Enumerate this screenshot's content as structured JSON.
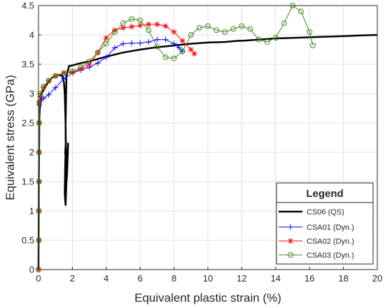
{
  "chart_data": {
    "type": "line",
    "xlabel": "Equivalent plastic strain (%)",
    "ylabel": "Equivalent stress (GPa)",
    "xlim": [
      0,
      20
    ],
    "ylim": [
      0,
      4.5
    ],
    "xticks": [
      0,
      2,
      4,
      6,
      8,
      10,
      12,
      14,
      16,
      18,
      20
    ],
    "yticks": [
      0,
      0.5,
      1,
      1.5,
      2,
      2.5,
      3,
      3.5,
      4,
      4.5
    ],
    "x_tick_labels": [
      "0",
      "2",
      "4",
      "6",
      "8",
      "10",
      "12",
      "14",
      "16",
      "18",
      "20"
    ],
    "y_tick_labels": [
      "0",
      "0.5",
      "1",
      "1.5",
      "2",
      "2.5",
      "3",
      "3.5",
      "4",
      "4.5"
    ],
    "grid": true,
    "legend": {
      "title": "Legend",
      "position": "bottom-right",
      "entries": [
        "CS06 (QS)",
        "CSA01 (Dyn.)",
        "CSA02 (Dyn.)",
        "CSA03 (Dyn.)"
      ]
    },
    "series": [
      {
        "name": "CS06 (QS)",
        "color": "#000000",
        "marker": "none",
        "x": [
          0,
          0.02,
          0.05,
          0.1,
          0.2,
          0.4,
          0.6,
          0.8,
          1.0,
          1.2,
          1.4,
          1.5,
          1.55,
          1.6,
          1.62,
          1.65,
          1.6,
          1.55,
          1.58,
          1.62,
          1.58,
          1.65,
          1.7,
          1.75,
          1.68,
          1.62,
          1.6,
          1.65,
          1.8,
          2.0,
          2.5,
          3.0,
          4.0,
          5.0,
          6.0,
          7.0,
          8.0,
          9.0,
          10.0,
          11.0,
          11.8,
          12.0,
          13.0,
          14.0,
          15.0,
          16.0,
          17.0,
          18.0,
          19.0,
          20.0
        ],
        "y": [
          0,
          1.5,
          2.6,
          2.85,
          3.0,
          3.12,
          3.2,
          3.27,
          3.3,
          3.32,
          3.3,
          3.2,
          3.0,
          2.5,
          2.0,
          1.5,
          1.1,
          1.3,
          1.8,
          2.2,
          2.0,
          1.7,
          1.9,
          2.15,
          1.6,
          1.4,
          2.5,
          3.3,
          3.47,
          3.48,
          3.52,
          3.55,
          3.63,
          3.7,
          3.75,
          3.79,
          3.82,
          3.85,
          3.87,
          3.88,
          3.9,
          3.9,
          3.92,
          3.94,
          3.95,
          3.96,
          3.97,
          3.98,
          3.99,
          4.0
        ]
      },
      {
        "name": "CSA01 (Dyn.)",
        "color": "#0000ff",
        "marker": "plus",
        "x": [
          0,
          0.02,
          0.02,
          0.02,
          0.03,
          0.03,
          0.04,
          0.05,
          0.1,
          0.3,
          0.6,
          1.0,
          1.5,
          2.0,
          2.5,
          3.0,
          3.5,
          4.0,
          4.5,
          5.0,
          5.5,
          6.0,
          6.5,
          7.0,
          7.5,
          8.0,
          8.3,
          8.5
        ],
        "y": [
          0,
          0.5,
          1.0,
          1.5,
          2.0,
          2.5,
          2.8,
          2.85,
          2.88,
          2.92,
          2.98,
          3.1,
          3.25,
          3.35,
          3.4,
          3.45,
          3.52,
          3.62,
          3.78,
          3.85,
          3.86,
          3.86,
          3.88,
          3.92,
          3.92,
          3.85,
          3.78,
          3.72
        ]
      },
      {
        "name": "CSA02 (Dyn.)",
        "color": "#ff0000",
        "marker": "star",
        "x": [
          0,
          0.02,
          0.02,
          0.03,
          0.03,
          0.04,
          0.05,
          0.1,
          0.3,
          0.6,
          1.0,
          1.5,
          2.0,
          2.5,
          3.0,
          3.5,
          4.0,
          4.5,
          5.0,
          5.5,
          6.0,
          6.5,
          7.0,
          7.5,
          8.0,
          8.5,
          9.0,
          9.2
        ],
        "y": [
          0,
          0.5,
          1.0,
          1.5,
          2.0,
          2.5,
          2.85,
          2.95,
          3.1,
          3.22,
          3.3,
          3.35,
          3.36,
          3.42,
          3.5,
          3.7,
          3.95,
          4.08,
          4.12,
          4.14,
          4.16,
          4.18,
          4.18,
          4.15,
          4.05,
          3.9,
          3.75,
          3.68
        ]
      },
      {
        "name": "CSA03 (Dyn.)",
        "color": "#3c8a1e",
        "marker": "circle",
        "x": [
          0,
          0.02,
          0.02,
          0.03,
          0.03,
          0.04,
          0.05,
          0.1,
          0.3,
          0.6,
          1.0,
          1.5,
          2.0,
          2.5,
          3.0,
          3.5,
          4.0,
          4.5,
          5.0,
          5.5,
          6.0,
          6.5,
          7.0,
          7.5,
          8.0,
          8.5,
          9.0,
          9.5,
          10.0,
          10.5,
          11.0,
          11.5,
          12.0,
          12.5,
          13.0,
          13.5,
          14.0,
          14.5,
          15.0,
          15.5,
          16.0,
          16.2
        ],
        "y": [
          0,
          0.5,
          1.0,
          1.5,
          2.0,
          2.5,
          2.85,
          3.0,
          3.12,
          3.22,
          3.3,
          3.35,
          3.38,
          3.45,
          3.55,
          3.7,
          3.85,
          4.05,
          4.2,
          4.27,
          4.25,
          4.08,
          3.8,
          3.62,
          3.6,
          3.72,
          4.0,
          4.12,
          4.15,
          4.08,
          4.05,
          4.1,
          4.15,
          4.1,
          3.92,
          3.88,
          3.95,
          4.2,
          4.5,
          4.4,
          4.05,
          3.82
        ]
      }
    ]
  }
}
